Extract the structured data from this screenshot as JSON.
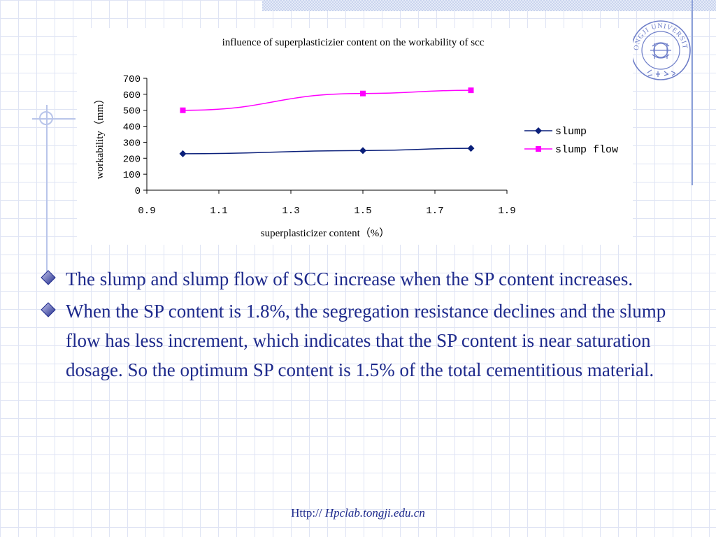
{
  "chart_data": {
    "type": "line",
    "title": "influence of superplasticizier content on the workability of scc",
    "xlabel": "superplasticizer content（%）",
    "ylabel": "workability（mm）",
    "xlim": [
      0.9,
      1.9
    ],
    "ylim": [
      0,
      700
    ],
    "x_ticks": [
      "0.9",
      "1.1",
      "1.3",
      "1.5",
      "1.7",
      "1.9"
    ],
    "y_ticks": [
      "0",
      "100",
      "200",
      "300",
      "400",
      "500",
      "600",
      "700"
    ],
    "grid": false,
    "legend_position": "right",
    "series": [
      {
        "name": "slump",
        "color": "#0a1f7a",
        "marker": "diamond",
        "x": [
          1.0,
          1.5,
          1.8
        ],
        "y": [
          228,
          248,
          262
        ]
      },
      {
        "name": "slump flow",
        "color": "#ff00ff",
        "marker": "square",
        "x": [
          1.0,
          1.5,
          1.8
        ],
        "y": [
          500,
          605,
          625
        ]
      }
    ]
  },
  "bullets": [
    "The slump and slump flow of SCC increase when the SP content increases.",
    "When the SP content is 1.8%, the segregation resistance declines and the slump flow has less increment, which indicates that the SP content is near saturation dosage. So the optimum SP content is 1.5% of the total cementitious material."
  ],
  "footer": {
    "prefix": "Http:// ",
    "link": "Hpclab.tongji.edu.cn"
  },
  "logo": {
    "text": "TONGJI UNIVERSITY",
    "color": "#6f7fc9",
    "icon": "tongji-university-seal-icon"
  }
}
